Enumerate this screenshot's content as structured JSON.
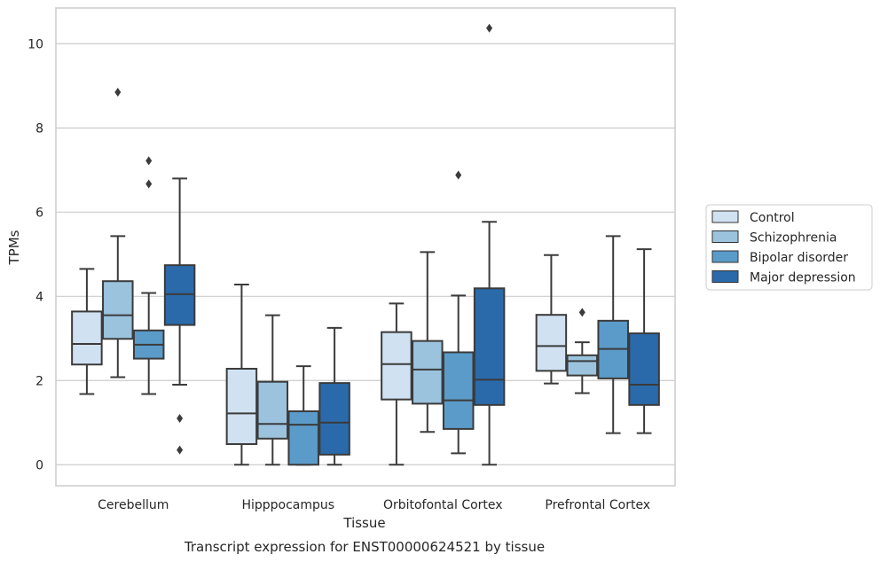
{
  "chart_data": {
    "type": "boxplot",
    "caption": "Transcript expression for ENST00000624521 by tissue",
    "xlabel": "Tissue",
    "ylabel": "TPMs",
    "ylim": [
      -0.5,
      10.85
    ],
    "yticks": [
      0,
      2,
      4,
      6,
      8,
      10
    ],
    "grid": "horizontal",
    "legend_position": "right",
    "categories": [
      "Cerebellum",
      "Hipppocampus",
      "Orbitofontal Cortex",
      "Prefrontal Cortex"
    ],
    "series": [
      {
        "name": "Control",
        "color": "#d0e1f1",
        "boxes": [
          {
            "whisker_low": 1.68,
            "q1": 2.38,
            "median": 2.87,
            "q3": 3.64,
            "whisker_high": 4.65,
            "outliers": []
          },
          {
            "whisker_low": 0.0,
            "q1": 0.49,
            "median": 1.22,
            "q3": 2.28,
            "whisker_high": 4.28,
            "outliers": []
          },
          {
            "whisker_low": 0.0,
            "q1": 1.55,
            "median": 2.39,
            "q3": 3.15,
            "whisker_high": 3.83,
            "outliers": []
          },
          {
            "whisker_low": 1.93,
            "q1": 2.23,
            "median": 2.82,
            "q3": 3.56,
            "whisker_high": 4.98,
            "outliers": []
          }
        ]
      },
      {
        "name": "Schizophrenia",
        "color": "#9bc3de",
        "boxes": [
          {
            "whisker_low": 2.08,
            "q1": 2.99,
            "median": 3.55,
            "q3": 4.36,
            "whisker_high": 5.43,
            "outliers": [
              8.85
            ]
          },
          {
            "whisker_low": 0.0,
            "q1": 0.62,
            "median": 0.97,
            "q3": 1.97,
            "whisker_high": 3.55,
            "outliers": []
          },
          {
            "whisker_low": 0.78,
            "q1": 1.45,
            "median": 2.26,
            "q3": 2.94,
            "whisker_high": 5.05,
            "outliers": []
          },
          {
            "whisker_low": 1.7,
            "q1": 2.12,
            "median": 2.46,
            "q3": 2.6,
            "whisker_high": 2.91,
            "outliers": [
              3.62
            ]
          }
        ]
      },
      {
        "name": "Bipolar disorder",
        "color": "#5b9bc9",
        "boxes": [
          {
            "whisker_low": 1.68,
            "q1": 2.52,
            "median": 2.85,
            "q3": 3.19,
            "whisker_high": 4.08,
            "outliers": [
              6.67,
              7.22
            ]
          },
          {
            "whisker_low": 0.0,
            "q1": 0.0,
            "median": 0.95,
            "q3": 1.27,
            "whisker_high": 2.34,
            "outliers": []
          },
          {
            "whisker_low": 0.27,
            "q1": 0.85,
            "median": 1.53,
            "q3": 2.67,
            "whisker_high": 4.02,
            "outliers": [
              6.88
            ]
          },
          {
            "whisker_low": 0.75,
            "q1": 2.05,
            "median": 2.75,
            "q3": 3.42,
            "whisker_high": 5.43,
            "outliers": []
          }
        ]
      },
      {
        "name": "Major depression",
        "color": "#2a6aaa",
        "boxes": [
          {
            "whisker_low": 1.9,
            "q1": 3.32,
            "median": 4.05,
            "q3": 4.74,
            "whisker_high": 6.8,
            "outliers": [
              1.1,
              0.35
            ]
          },
          {
            "whisker_low": 0.0,
            "q1": 0.24,
            "median": 1.0,
            "q3": 1.94,
            "whisker_high": 3.25,
            "outliers": []
          },
          {
            "whisker_low": 0.0,
            "q1": 1.42,
            "median": 2.02,
            "q3": 4.19,
            "whisker_high": 5.77,
            "outliers": [
              10.37
            ]
          },
          {
            "whisker_low": 0.75,
            "q1": 1.42,
            "median": 1.9,
            "q3": 3.12,
            "whisker_high": 5.12,
            "outliers": []
          }
        ]
      }
    ]
  }
}
